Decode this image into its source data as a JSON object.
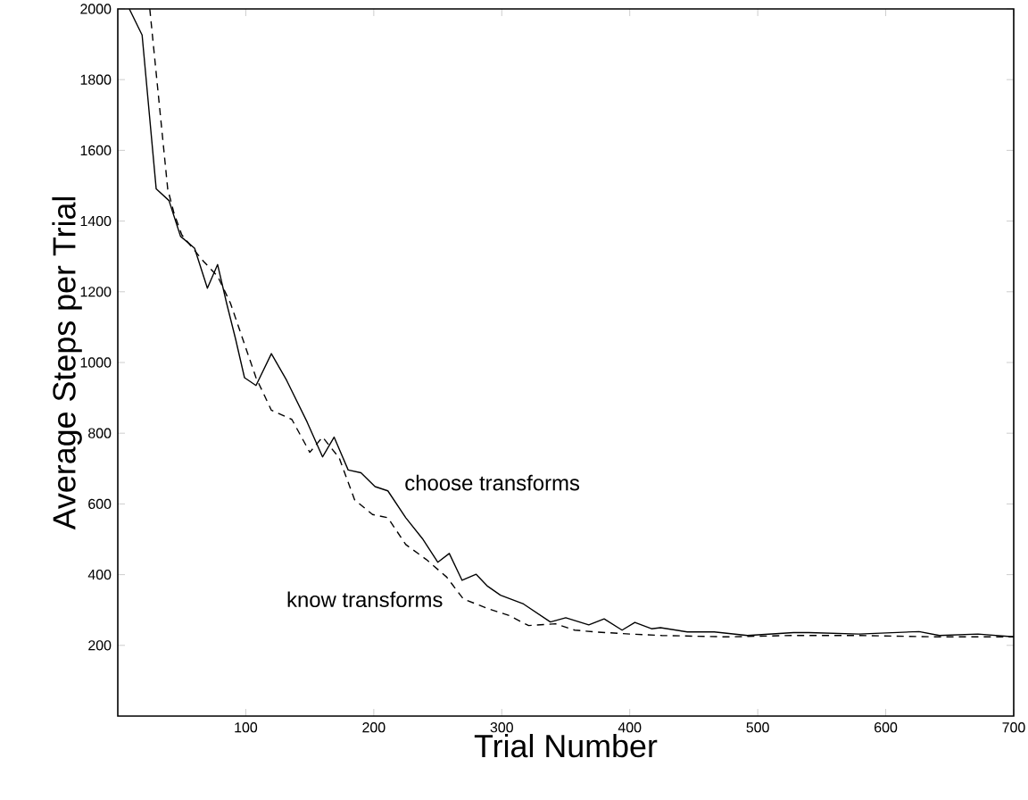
{
  "chart_data": {
    "type": "line",
    "xlabel": "Trial Number",
    "ylabel": "Average Steps per Trial",
    "xlim": [
      0,
      700
    ],
    "ylim": [
      0,
      2000
    ],
    "xticks": [
      100,
      200,
      300,
      400,
      500,
      600,
      700
    ],
    "yticks": [
      200,
      400,
      600,
      800,
      1000,
      1200,
      1400,
      1600,
      1800,
      2000
    ],
    "grid": false,
    "legend": false,
    "marker": "none",
    "series": [
      {
        "name": "choose transforms",
        "color": "#000000",
        "line_style": "solid",
        "x": [
          9,
          19,
          30,
          40,
          49,
          60,
          70,
          78,
          85,
          92,
          99,
          108,
          120,
          132,
          148,
          160,
          169,
          180,
          190,
          201,
          211,
          225,
          238,
          250,
          259,
          269,
          280,
          289,
          299,
          317,
          338,
          350,
          368,
          380,
          394,
          404,
          417,
          424,
          445,
          466,
          492,
          528,
          540,
          579,
          626,
          642,
          672,
          700
        ],
        "values": [
          2000,
          1926,
          1491,
          1458,
          1357,
          1323,
          1210,
          1277,
          1168,
          1067,
          957,
          935,
          1025,
          949,
          831,
          733,
          789,
          696,
          688,
          649,
          637,
          561,
          502,
          435,
          460,
          384,
          401,
          367,
          342,
          317,
          266,
          278,
          258,
          275,
          243,
          265,
          247,
          250,
          238,
          238,
          228,
          236,
          236,
          232,
          239,
          228,
          232,
          224
        ]
      },
      {
        "name": "know transforms",
        "color": "#000000",
        "line_style": "dashed",
        "x": [
          25,
          39,
          44,
          50,
          67,
          78,
          88,
          108,
          120,
          136,
          150,
          160,
          173,
          185,
          199,
          211,
          225,
          241,
          257,
          270,
          290,
          306,
          321,
          342,
          357,
          373,
          400,
          425,
          476,
          528,
          579,
          642,
          700
        ],
        "values": [
          2000,
          1491,
          1421,
          1361,
          1286,
          1244,
          1168,
          957,
          865,
          839,
          746,
          789,
          730,
          612,
          570,
          561,
          485,
          443,
          393,
          331,
          303,
          284,
          256,
          261,
          243,
          238,
          232,
          228,
          224,
          228,
          228,
          224,
          224
        ]
      }
    ]
  }
}
